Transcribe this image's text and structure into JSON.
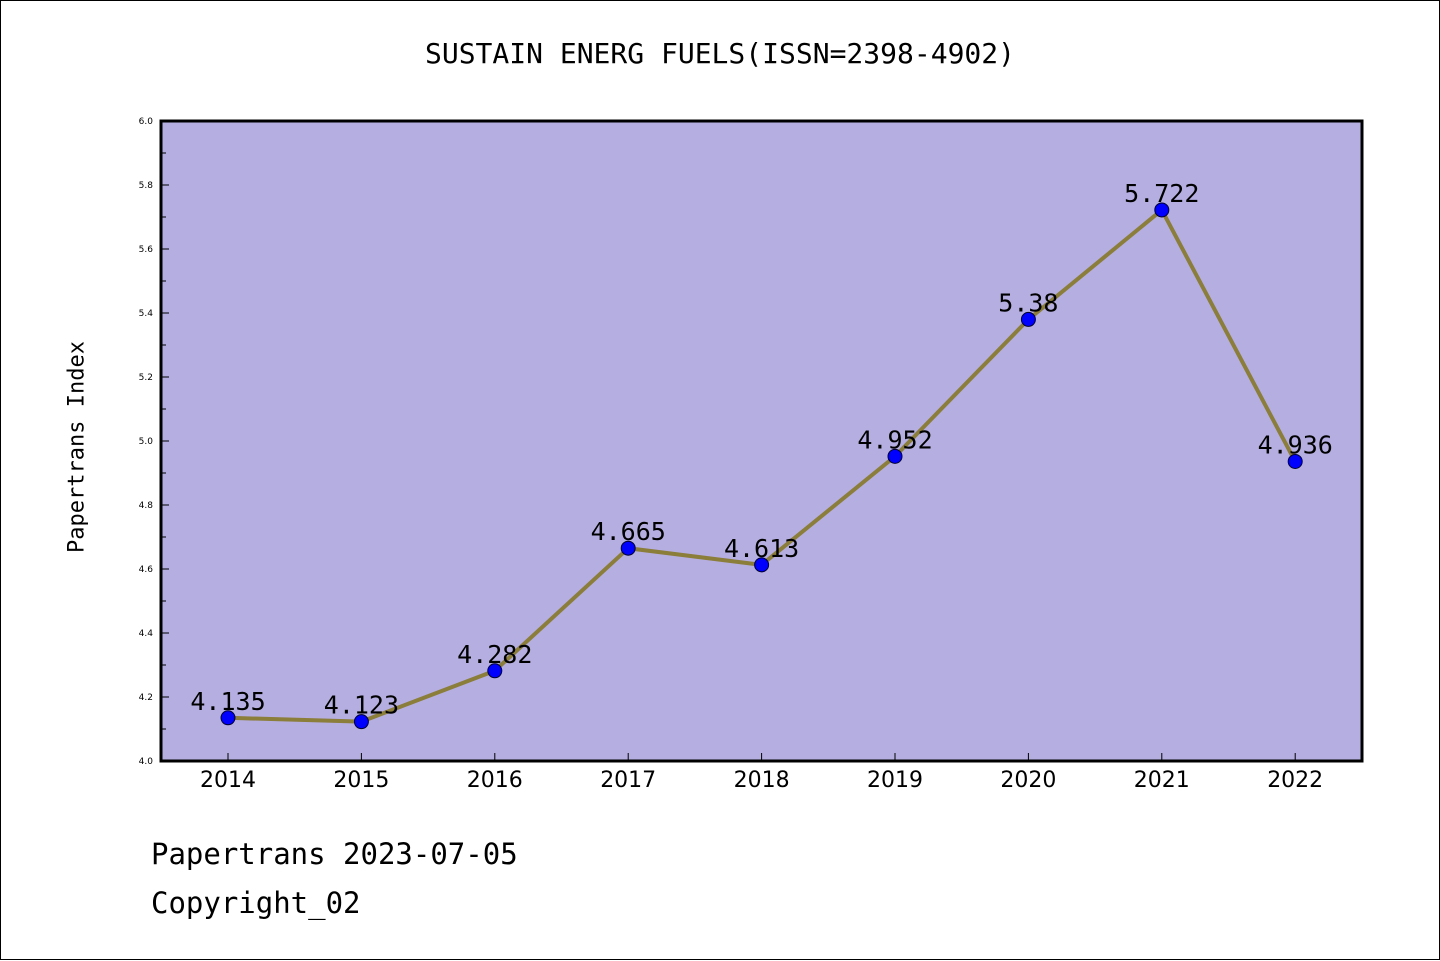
{
  "chart_data": {
    "type": "line",
    "title": "SUSTAIN ENERG FUELS(ISSN=2398-4902)",
    "xlabel": "",
    "ylabel": "Papertrans Index",
    "categories": [
      "2014",
      "2015",
      "2016",
      "2017",
      "2018",
      "2019",
      "2020",
      "2021",
      "2022"
    ],
    "series": [
      {
        "values": [
          4.135,
          4.123,
          4.282,
          4.665,
          4.613,
          4.952,
          5.38,
          5.722,
          4.936
        ],
        "data_labels": [
          "4.135",
          "4.123",
          "4.282",
          "4.665",
          "4.613",
          "4.952",
          "5.38",
          "5.722",
          "4.936"
        ],
        "line_color": "#8b7d3a",
        "marker_color": "#0000ff"
      }
    ],
    "ylim": [
      4.0,
      6.0
    ],
    "y_ticks": [
      "4.0",
      "4.2",
      "4.4",
      "4.6",
      "4.8",
      "5.0",
      "5.2",
      "5.4",
      "5.6",
      "5.8",
      "6.0"
    ],
    "plot_background": "#b5aee1",
    "grid": false,
    "legend": "none"
  },
  "footer": {
    "date_text": "Papertrans 2023-07-05",
    "copyright_text": "Copyright_02"
  }
}
